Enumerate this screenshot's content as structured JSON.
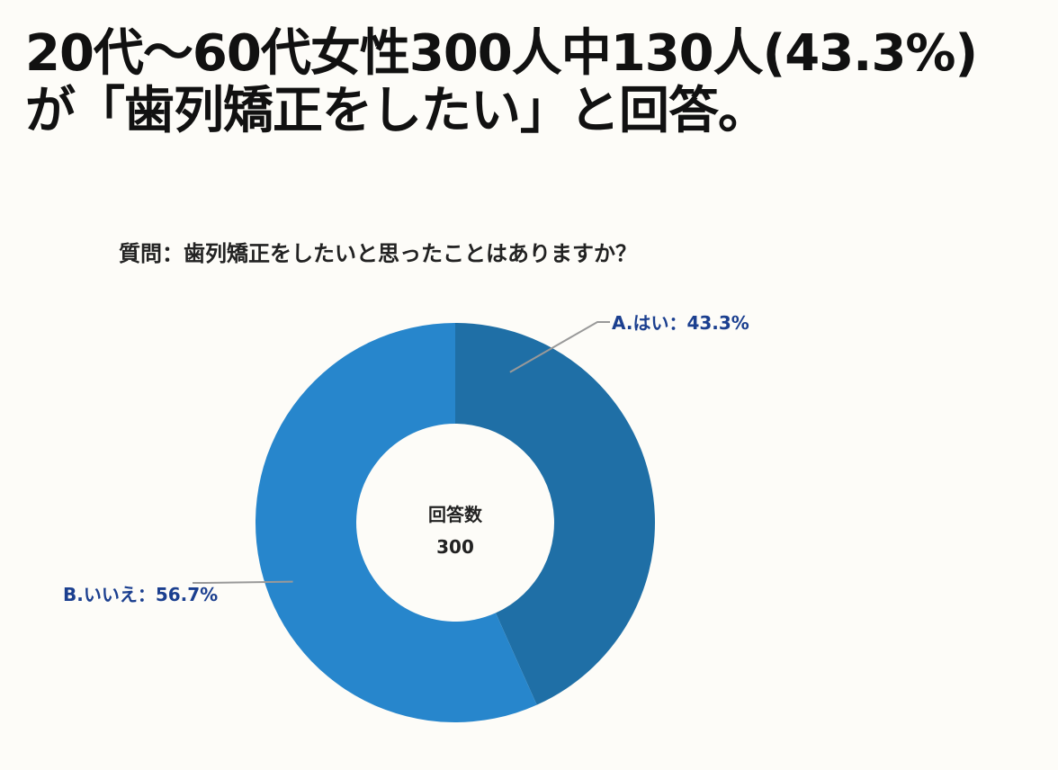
{
  "headline": {
    "line1": "20代〜60代女性300人中130人(43.3%)",
    "line2": "が「歯列矯正をしたい」と回答。"
  },
  "chart_data": {
    "type": "pie",
    "donut": true,
    "title": "質問：歯列矯正をしたいと思ったことはありますか？",
    "center_label": "回答数",
    "center_value": "300",
    "slices": [
      {
        "label": "A.はい：43.3%",
        "value": 43.3,
        "color": "#1f6fa6"
      },
      {
        "label": "B.いいえ：56.7%",
        "value": 56.7,
        "color": "#2786cc"
      }
    ],
    "label_color": "#1b3f8f",
    "leader_color": "#999999"
  }
}
